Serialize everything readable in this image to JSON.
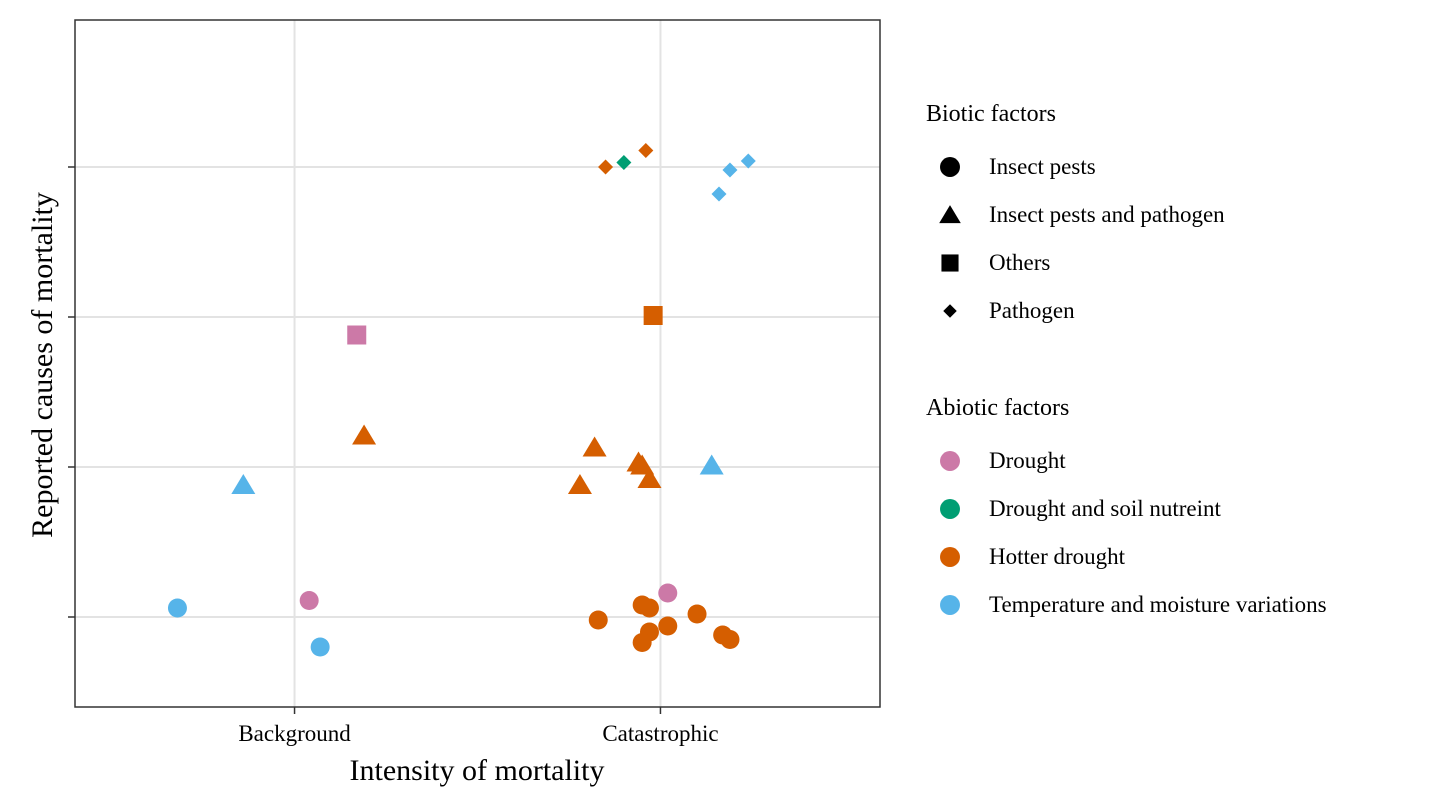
{
  "colors": {
    "Drought": "#CC79A7",
    "Drought and soil nutreint": "#009E73",
    "Hotter drought": "#D55E00",
    "Temperature and moisture variations": "#56B4E9",
    "legend_glyph": "#000000"
  },
  "legend": {
    "biotic_title": "Biotic factors",
    "biotic_items": [
      {
        "label": "Insect pests",
        "shape": "circle"
      },
      {
        "label": "Insect pests and pathogen",
        "shape": "triangle"
      },
      {
        "label": "Others",
        "shape": "square"
      },
      {
        "label": "Pathogen",
        "shape": "diamond"
      }
    ],
    "abiotic_title": "Abiotic factors",
    "abiotic_items": [
      {
        "label": "Drought"
      },
      {
        "label": "Drought and soil nutreint"
      },
      {
        "label": "Hotter drought"
      },
      {
        "label": "Temperature and moisture variations"
      }
    ]
  },
  "chart_data": {
    "type": "scatter",
    "title": "",
    "xlabel": "Intensity of mortality",
    "ylabel": "Reported causes of mortality",
    "categories": [
      "Background",
      "Catastrophic"
    ],
    "xlim": [
      0.4,
      2.6
    ],
    "ylim": [
      0.4,
      4.98
    ],
    "y_ticks": [
      1,
      2,
      3,
      4
    ],
    "y_tick_labels_shown": false,
    "grid": true,
    "legend_position": "right",
    "points": [
      {
        "x": 0.68,
        "y": 1.06,
        "shape": "circle",
        "factor": "Temperature and moisture variations"
      },
      {
        "x": 1.04,
        "y": 1.11,
        "shape": "circle",
        "factor": "Drought"
      },
      {
        "x": 1.07,
        "y": 0.8,
        "shape": "circle",
        "factor": "Temperature and moisture variations"
      },
      {
        "x": 1.83,
        "y": 0.98,
        "shape": "circle",
        "factor": "Hotter drought"
      },
      {
        "x": 1.95,
        "y": 1.08,
        "shape": "circle",
        "factor": "Hotter drought"
      },
      {
        "x": 1.97,
        "y": 1.06,
        "shape": "circle",
        "factor": "Hotter drought"
      },
      {
        "x": 1.97,
        "y": 0.9,
        "shape": "circle",
        "factor": "Hotter drought"
      },
      {
        "x": 1.95,
        "y": 0.83,
        "shape": "circle",
        "factor": "Hotter drought"
      },
      {
        "x": 2.02,
        "y": 1.16,
        "shape": "circle",
        "factor": "Drought"
      },
      {
        "x": 2.02,
        "y": 0.94,
        "shape": "circle",
        "factor": "Hotter drought"
      },
      {
        "x": 2.1,
        "y": 1.02,
        "shape": "circle",
        "factor": "Hotter drought"
      },
      {
        "x": 2.17,
        "y": 0.88,
        "shape": "circle",
        "factor": "Hotter drought"
      },
      {
        "x": 2.19,
        "y": 0.85,
        "shape": "circle",
        "factor": "Hotter drought"
      },
      {
        "x": 0.86,
        "y": 1.88,
        "shape": "triangle",
        "factor": "Temperature and moisture variations"
      },
      {
        "x": 1.19,
        "y": 2.21,
        "shape": "triangle",
        "factor": "Hotter drought"
      },
      {
        "x": 1.78,
        "y": 1.88,
        "shape": "triangle",
        "factor": "Hotter drought"
      },
      {
        "x": 1.82,
        "y": 2.13,
        "shape": "triangle",
        "factor": "Hotter drought"
      },
      {
        "x": 1.94,
        "y": 2.03,
        "shape": "triangle",
        "factor": "Hotter drought"
      },
      {
        "x": 1.95,
        "y": 2.01,
        "shape": "triangle",
        "factor": "Hotter drought"
      },
      {
        "x": 1.97,
        "y": 1.92,
        "shape": "triangle",
        "factor": "Hotter drought"
      },
      {
        "x": 2.14,
        "y": 2.01,
        "shape": "triangle",
        "factor": "Temperature and moisture variations"
      },
      {
        "x": 1.17,
        "y": 2.88,
        "shape": "square",
        "factor": "Drought"
      },
      {
        "x": 1.98,
        "y": 3.01,
        "shape": "square",
        "factor": "Hotter drought"
      },
      {
        "x": 1.85,
        "y": 4.0,
        "shape": "diamond",
        "factor": "Hotter drought"
      },
      {
        "x": 1.9,
        "y": 4.03,
        "shape": "diamond",
        "factor": "Drought and soil nutreint"
      },
      {
        "x": 1.96,
        "y": 4.11,
        "shape": "diamond",
        "factor": "Hotter drought"
      },
      {
        "x": 2.16,
        "y": 3.82,
        "shape": "diamond",
        "factor": "Temperature and moisture variations"
      },
      {
        "x": 2.19,
        "y": 3.98,
        "shape": "diamond",
        "factor": "Temperature and moisture variations"
      },
      {
        "x": 2.24,
        "y": 4.04,
        "shape": "diamond",
        "factor": "Temperature and moisture variations"
      }
    ]
  }
}
